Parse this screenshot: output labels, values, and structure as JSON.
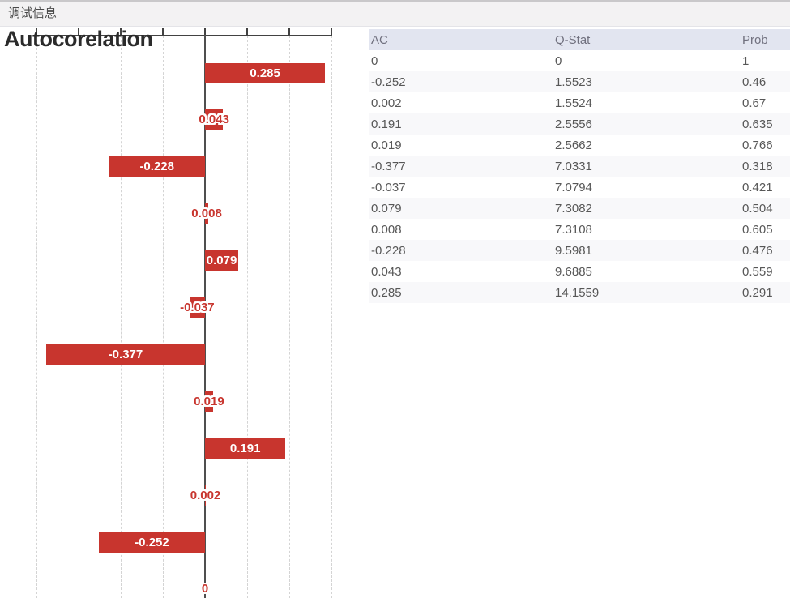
{
  "window": {
    "title": "调试信息"
  },
  "chart_data": {
    "type": "bar",
    "orientation": "horizontal",
    "title": "Autocorelation",
    "series_name": "AC",
    "values": [
      0.285,
      0.043,
      -0.228,
      0.008,
      0.079,
      -0.037,
      -0.377,
      0.019,
      0.191,
      0.002,
      -0.252,
      0
    ],
    "bar_labels": [
      "0.285",
      "0.043",
      "-0.228",
      "0.008",
      "0.079",
      "-0.037",
      "-0.377",
      "0.019",
      "0.191",
      "0.002",
      "-0.252",
      "0"
    ],
    "xlim": [
      -0.4,
      0.3
    ],
    "grid_step": 0.1,
    "grid": "vertical-dashed",
    "axis_position": "top",
    "bar_color": "#c8352e",
    "zero_line_color": "#4f4f4f",
    "gridline_color": "#d4d4d4"
  },
  "table": {
    "columns": [
      "AC",
      "Q-Stat",
      "Prob"
    ],
    "rows": [
      [
        "0",
        "0",
        "1"
      ],
      [
        "-0.252",
        "1.5523",
        "0.46"
      ],
      [
        "0.002",
        "1.5524",
        "0.67"
      ],
      [
        "0.191",
        "2.5556",
        "0.635"
      ],
      [
        "0.019",
        "2.5662",
        "0.766"
      ],
      [
        "-0.377",
        "7.0331",
        "0.318"
      ],
      [
        "-0.037",
        "7.0794",
        "0.421"
      ],
      [
        "0.079",
        "7.3082",
        "0.504"
      ],
      [
        "0.008",
        "7.3108",
        "0.605"
      ],
      [
        "-0.228",
        "9.5981",
        "0.476"
      ],
      [
        "0.043",
        "9.6885",
        "0.559"
      ],
      [
        "0.285",
        "14.1559",
        "0.291"
      ]
    ],
    "header_bg": "#e2e5f0"
  }
}
